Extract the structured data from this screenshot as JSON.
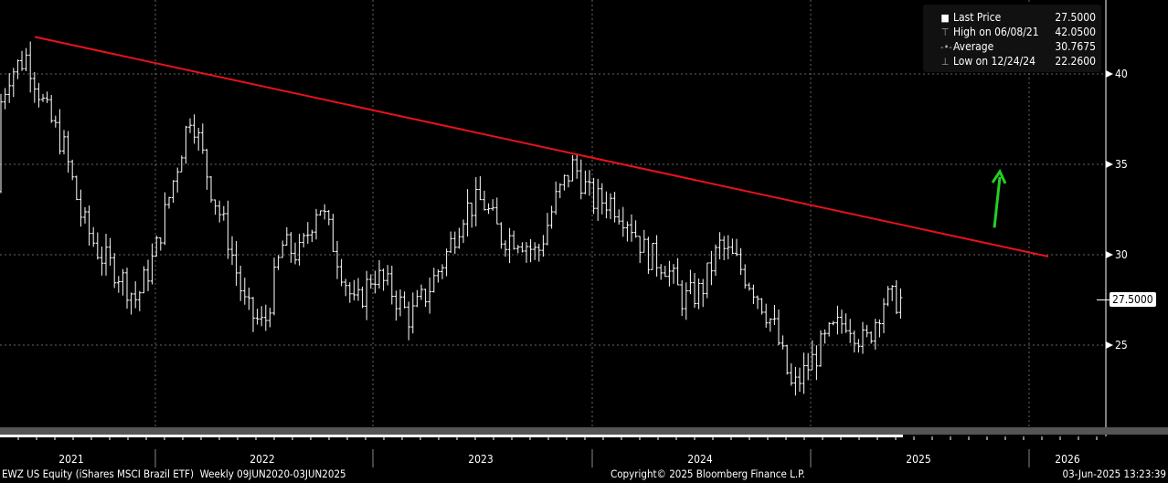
{
  "chart_data": {
    "type": "ohlc",
    "title": "EWZ US Equity (iShares MSCI Brazil ETF)",
    "frequency": "Weekly",
    "range_label": "Weekly 09JUN2020-03JUN2025",
    "ylim": [
      21,
      42.5
    ],
    "y_ticks": [
      "40",
      "35",
      "30",
      "25"
    ],
    "y_tick_values": [
      40,
      35,
      30,
      25
    ],
    "x_tick_labels": [
      "2021",
      "2022",
      "2023",
      "2024",
      "2025",
      "2026"
    ],
    "approx_monthly_closes": {
      "months": [
        "2021-03",
        "2021-04",
        "2021-05",
        "2021-06",
        "2021-07",
        "2021-08",
        "2021-09",
        "2021-10",
        "2021-11",
        "2021-12",
        "2022-01",
        "2022-02",
        "2022-03",
        "2022-04",
        "2022-05",
        "2022-06",
        "2022-07",
        "2022-08",
        "2022-09",
        "2022-10",
        "2022-11",
        "2022-12",
        "2023-01",
        "2023-02",
        "2023-03",
        "2023-04",
        "2023-05",
        "2023-06",
        "2023-07",
        "2023-08",
        "2023-09",
        "2023-10",
        "2023-11",
        "2023-12",
        "2024-01",
        "2024-02",
        "2024-03",
        "2024-04",
        "2024-05",
        "2024-06",
        "2024-07",
        "2024-08",
        "2024-09",
        "2024-10",
        "2024-11",
        "2024-12",
        "2025-01",
        "2025-02",
        "2025-03",
        "2025-04",
        "2025-05",
        "2025-06"
      ],
      "values": [
        33.5,
        36.5,
        40,
        41,
        38,
        36,
        32,
        30,
        29,
        27.5,
        30,
        34,
        38,
        34,
        31,
        27,
        26,
        30.5,
        30,
        33,
        30,
        27,
        29,
        28,
        26.5,
        28,
        30,
        32.5,
        33,
        31,
        31,
        30,
        33,
        35,
        33,
        33,
        32,
        30,
        29.5,
        27.5,
        28,
        30.5,
        29.5,
        28,
        26,
        22.5,
        24,
        25.5,
        26.5,
        25,
        27.5,
        27.5
      ]
    },
    "trendline": {
      "color": "#e8121c",
      "from": {
        "date": "2021-06-08",
        "value": 42.05
      },
      "to": {
        "date": "2026-02",
        "value": 29.9
      }
    },
    "annotation_arrow": {
      "color": "#22d022",
      "direction": "up",
      "date": "2025-09",
      "from_value": 31.5,
      "to_value": 34.5
    },
    "legend": [
      {
        "label": "Last Price",
        "value": "27.5000"
      },
      {
        "label": "High on 06/08/21",
        "value": "42.0500"
      },
      {
        "label": "Average",
        "value": "30.7675"
      },
      {
        "label": "Low on 12/24/24",
        "value": "22.2600"
      }
    ],
    "last_price_tag": "27.5000"
  },
  "footer": {
    "left": "EWZ US Equity (iShares MSCI Brazil ETF)  Weekly 09JUN2020-03JUN2025",
    "center": "Copyright© 2025 Bloomberg Finance L.P.",
    "right": "03-Jun-2025 13:23:39"
  }
}
